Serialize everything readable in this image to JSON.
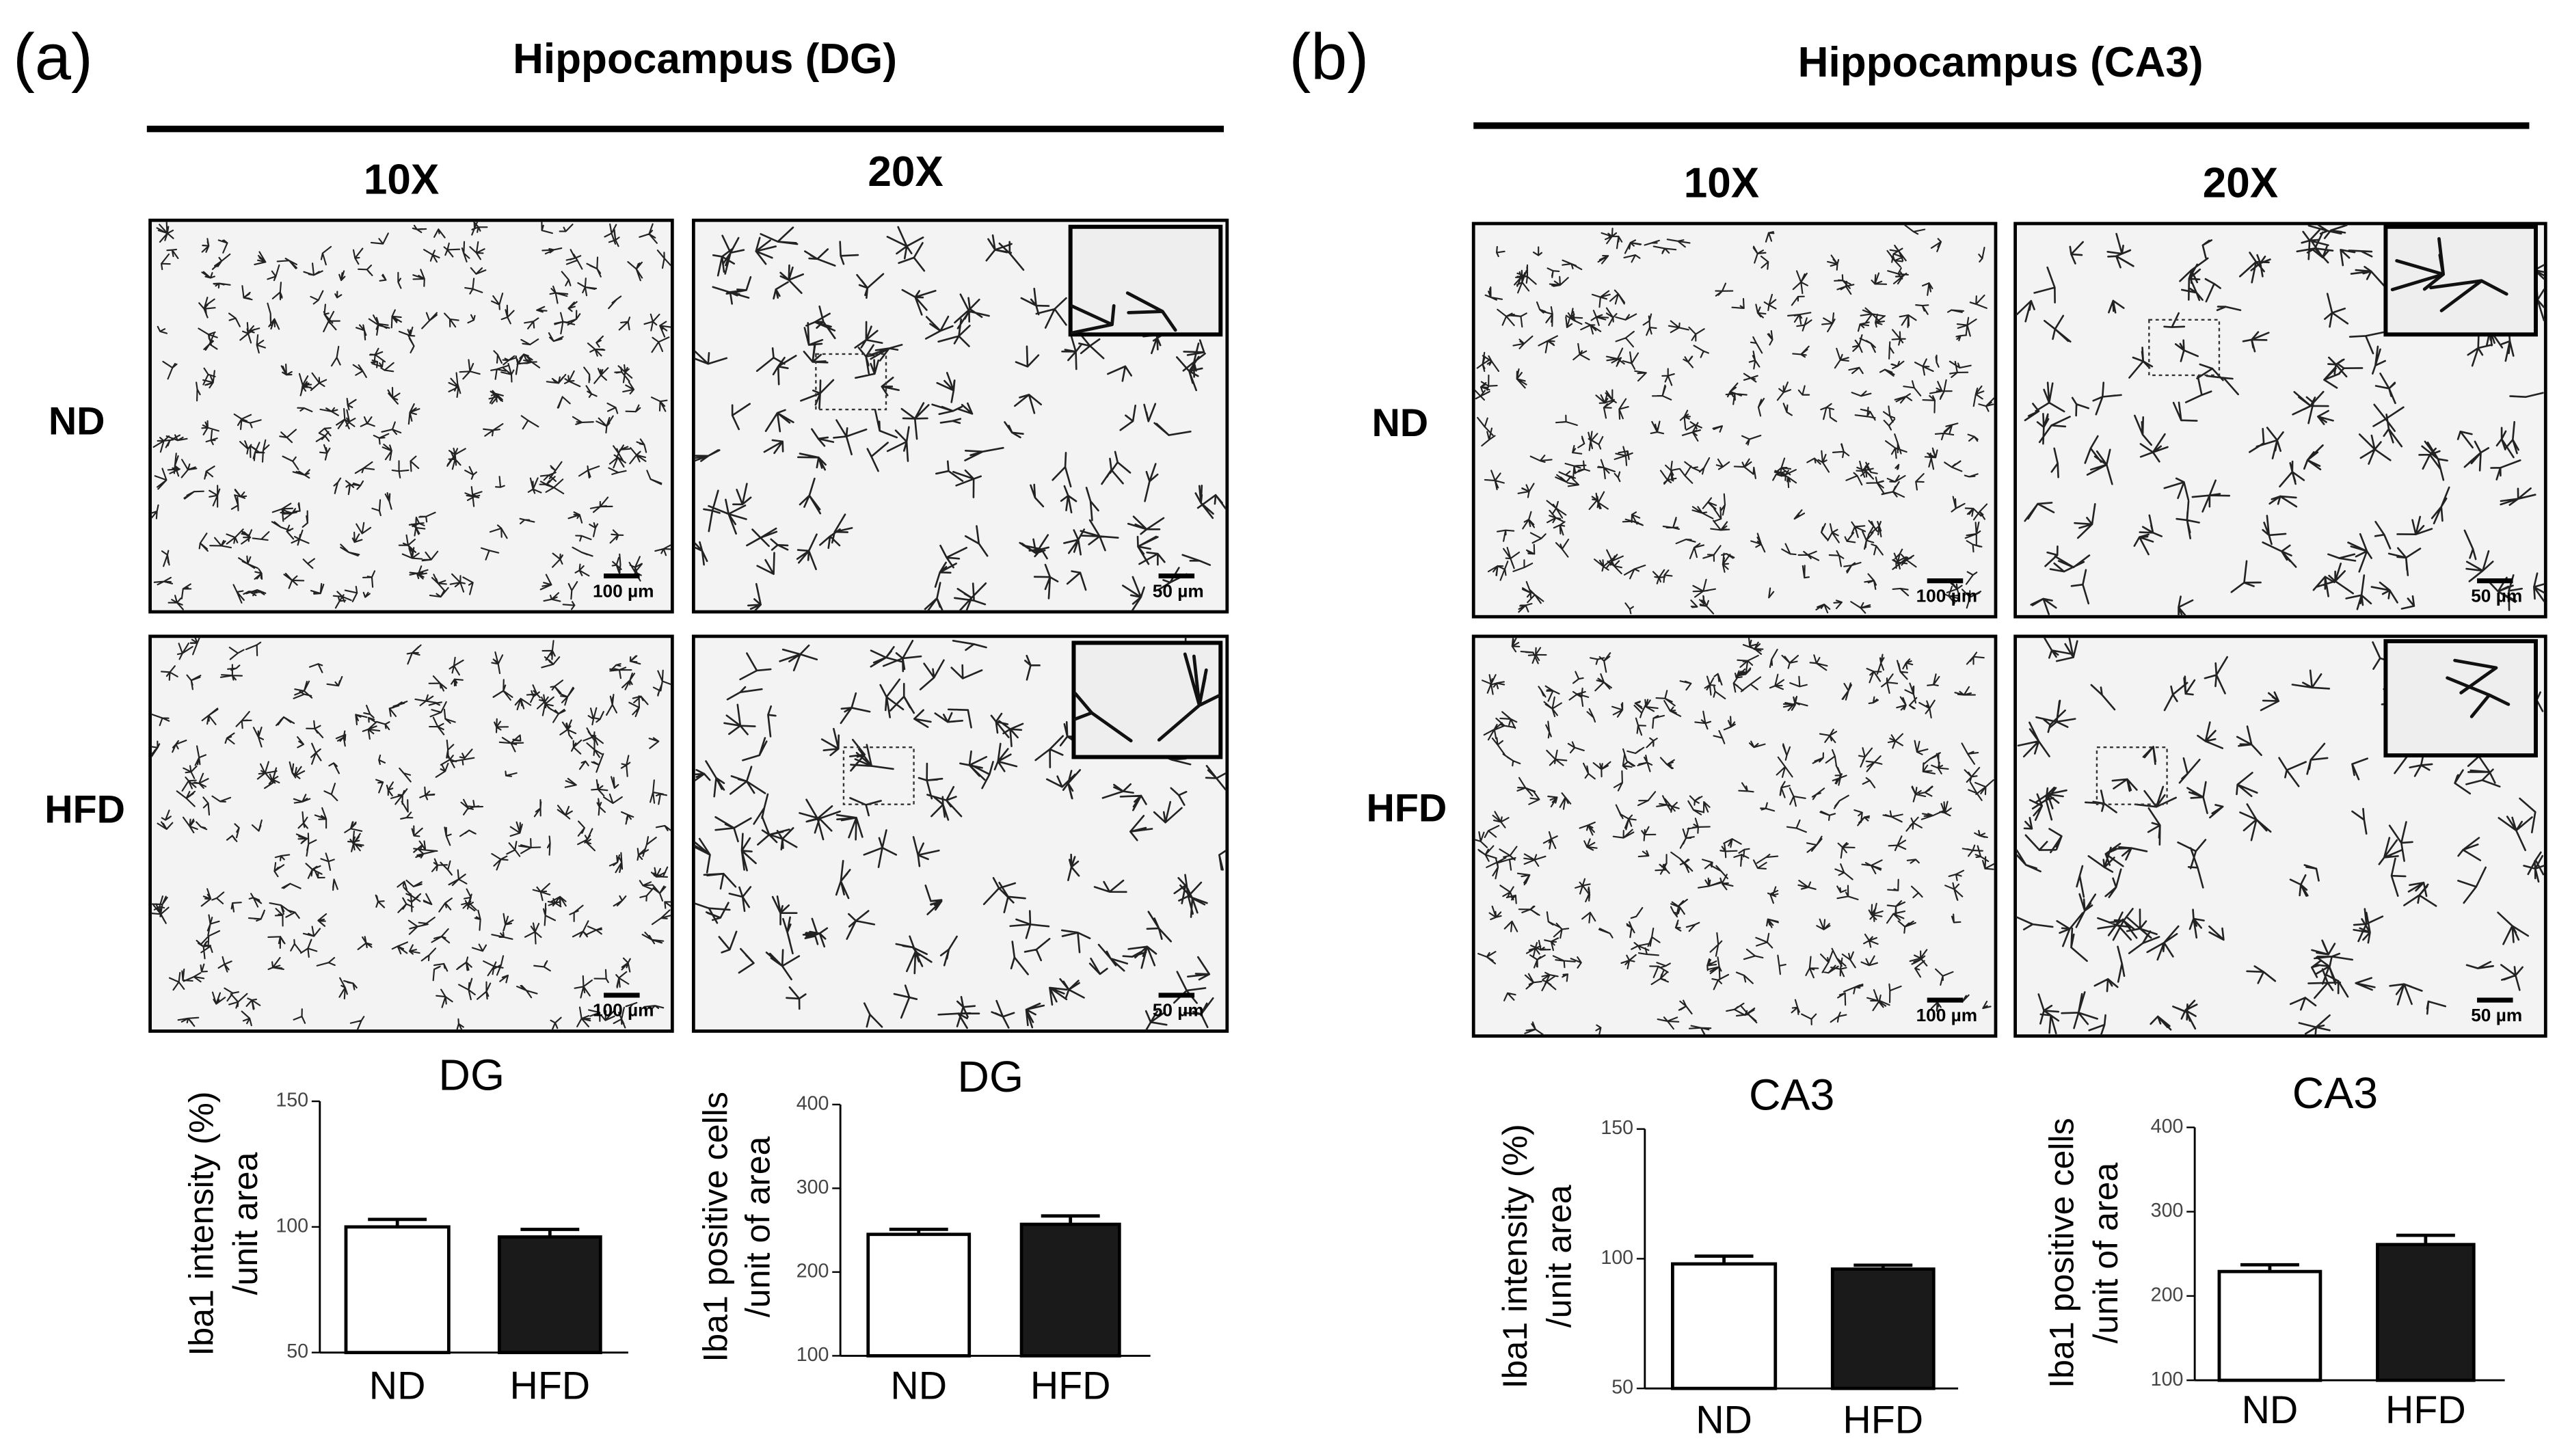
{
  "panels": [
    {
      "label": "(a)",
      "title": "Hippocampus (DG)",
      "columns": [
        "10X",
        "20X"
      ],
      "rows": [
        "ND",
        "HFD"
      ],
      "scale_bars": [
        "100 µm",
        "50 µm"
      ]
    },
    {
      "label": "(b)",
      "title": "Hippocampus (CA3)",
      "columns": [
        "10X",
        "20X"
      ],
      "rows": [
        "ND",
        "HFD"
      ],
      "scale_bars": [
        "100 µm",
        "50 µm"
      ]
    }
  ],
  "chart_data": [
    {
      "type": "bar",
      "title": "DG",
      "ylabel": [
        "Iba1 intensity (%)",
        "/unit area"
      ],
      "categories": [
        "ND",
        "HFD"
      ],
      "values": [
        100,
        96
      ],
      "errors": [
        3,
        3
      ],
      "colors": [
        "#ffffff",
        "#1a1a1a"
      ],
      "ylim": [
        50,
        150
      ],
      "yticks": [
        50,
        100,
        150
      ]
    },
    {
      "type": "bar",
      "title": "DG",
      "ylabel": [
        "Iba1 positive cells",
        "/unit of area"
      ],
      "categories": [
        "ND",
        "HFD"
      ],
      "values": [
        245,
        257
      ],
      "errors": [
        6,
        10
      ],
      "colors": [
        "#ffffff",
        "#1a1a1a"
      ],
      "ylim": [
        100,
        400
      ],
      "yticks": [
        100,
        200,
        300,
        400
      ]
    },
    {
      "type": "bar",
      "title": "CA3",
      "ylabel": [
        "Iba1 intensity (%)",
        "/unit area"
      ],
      "categories": [
        "ND",
        "HFD"
      ],
      "values": [
        98,
        96
      ],
      "errors": [
        3,
        1.5
      ],
      "colors": [
        "#ffffff",
        "#1a1a1a"
      ],
      "ylim": [
        50,
        150
      ],
      "yticks": [
        50,
        100,
        150
      ]
    },
    {
      "type": "bar",
      "title": "CA3",
      "ylabel": [
        "Iba1 positive cells",
        "/unit of area"
      ],
      "categories": [
        "ND",
        "HFD"
      ],
      "values": [
        229,
        261
      ],
      "errors": [
        8,
        11
      ],
      "colors": [
        "#ffffff",
        "#1a1a1a"
      ],
      "ylim": [
        100,
        400
      ],
      "yticks": [
        100,
        200,
        300,
        400
      ]
    }
  ]
}
